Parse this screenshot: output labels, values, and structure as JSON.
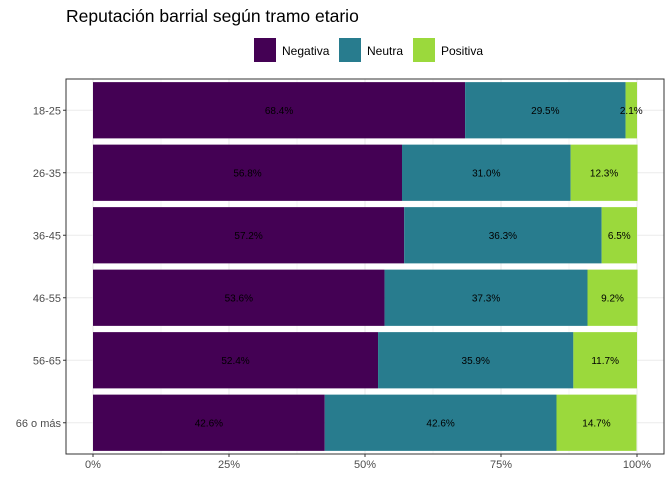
{
  "chart_data": {
    "type": "bar",
    "orientation": "horizontal",
    "stacked": true,
    "title": "Reputación barrial según tramo etario",
    "xlabel": "",
    "ylabel": "",
    "xlim": [
      0,
      100
    ],
    "x_ticks": [
      "0%",
      "25%",
      "50%",
      "75%",
      "100%"
    ],
    "categories": [
      "18-25",
      "26-35",
      "36-45",
      "46-55",
      "56-65",
      "66 o más"
    ],
    "series": [
      {
        "name": "Negativa",
        "color": "#440154",
        "values": [
          68.4,
          56.8,
          57.2,
          53.6,
          52.4,
          42.6
        ],
        "labels": [
          "68.4%",
          "56.8%",
          "57.2%",
          "53.6%",
          "52.4%",
          "42.6%"
        ]
      },
      {
        "name": "Neutra",
        "color": "#287C8E",
        "values": [
          29.5,
          31.0,
          36.3,
          37.3,
          35.9,
          42.6
        ],
        "labels": [
          "29.5%",
          "31.0%",
          "36.3%",
          "37.3%",
          "35.9%",
          "42.6%"
        ]
      },
      {
        "name": "Positiva",
        "color": "#9BD93C",
        "values": [
          2.1,
          12.3,
          6.5,
          9.2,
          11.7,
          14.7
        ],
        "labels": [
          "2.1%",
          "12.3%",
          "6.5%",
          "9.2%",
          "11.7%",
          "14.7%"
        ]
      }
    ],
    "legend_position": "top",
    "grid": true,
    "panel_border": true
  }
}
